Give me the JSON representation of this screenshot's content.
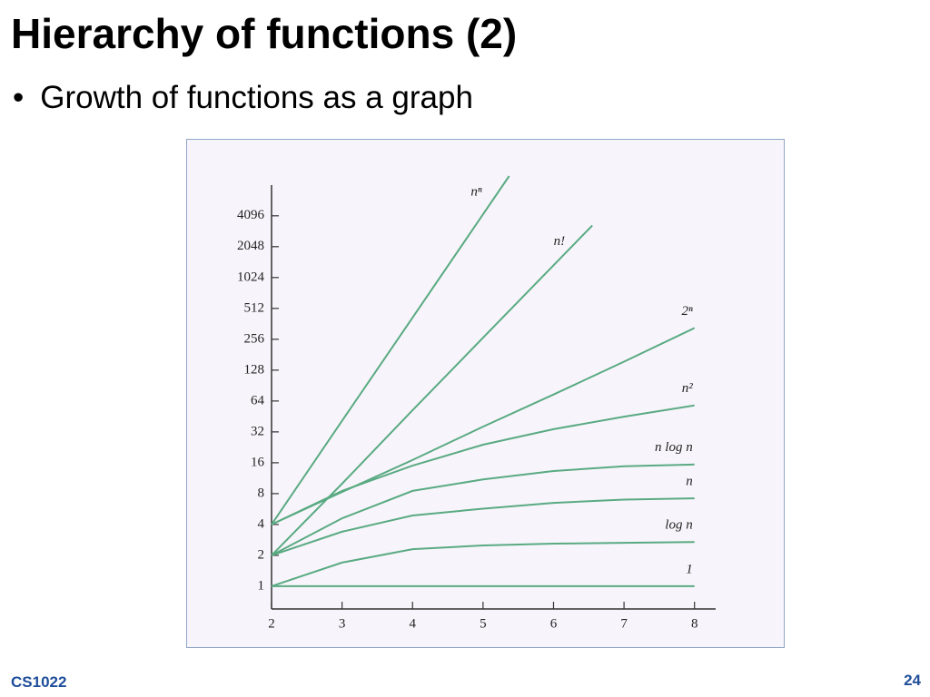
{
  "slide": {
    "title": "Hierarchy of functions (2)",
    "bullet": "Growth of functions as a graph",
    "footer": "CS1022",
    "page_number": "24"
  },
  "chart_data": {
    "type": "line",
    "log_y": true,
    "color": "#5aaa82",
    "xlim": [
      2,
      8.3
    ],
    "xticks": [
      2,
      3,
      4,
      5,
      6,
      7,
      8
    ],
    "ylim": [
      0.6,
      10000
    ],
    "yticks": [
      1,
      2,
      4,
      8,
      16,
      32,
      64,
      128,
      256,
      512,
      1024,
      2048,
      4096
    ],
    "series": [
      {
        "name": "nⁿ",
        "x": [
          2,
          3,
          4,
          5,
          5.37
        ],
        "values": [
          4,
          41,
          415,
          4240,
          10000
        ]
      },
      {
        "name": "n!",
        "x": [
          2,
          3,
          4,
          5,
          6,
          6.55
        ],
        "values": [
          2,
          10,
          52,
          265,
          1350,
          3300
        ]
      },
      {
        "name": "2ⁿ",
        "x": [
          2,
          3,
          4,
          5,
          6,
          7,
          8
        ],
        "values": [
          4,
          8.3,
          17,
          36,
          74,
          155,
          330
        ]
      },
      {
        "name": "n²",
        "x": [
          2,
          3,
          4,
          5,
          6,
          7,
          8
        ],
        "values": [
          4,
          8.5,
          15,
          24,
          34,
          45,
          58
        ]
      },
      {
        "name": "n log n",
        "x": [
          2,
          3,
          4,
          5,
          6,
          7,
          8
        ],
        "values": [
          2,
          4.6,
          8.5,
          11,
          13.3,
          14.8,
          15.4
        ]
      },
      {
        "name": "n",
        "x": [
          2,
          3,
          4,
          5,
          6,
          7,
          8
        ],
        "values": [
          2,
          3.4,
          4.9,
          5.7,
          6.5,
          7,
          7.2
        ]
      },
      {
        "name": "log n",
        "x": [
          2,
          3,
          4,
          5,
          6,
          7,
          8
        ],
        "values": [
          1,
          1.7,
          2.3,
          2.5,
          2.6,
          2.65,
          2.7
        ]
      },
      {
        "name": "1",
        "x": [
          2,
          3,
          4,
          5,
          6,
          7,
          8
        ],
        "values": [
          1,
          1,
          1,
          1,
          1,
          1,
          1
        ]
      }
    ]
  }
}
